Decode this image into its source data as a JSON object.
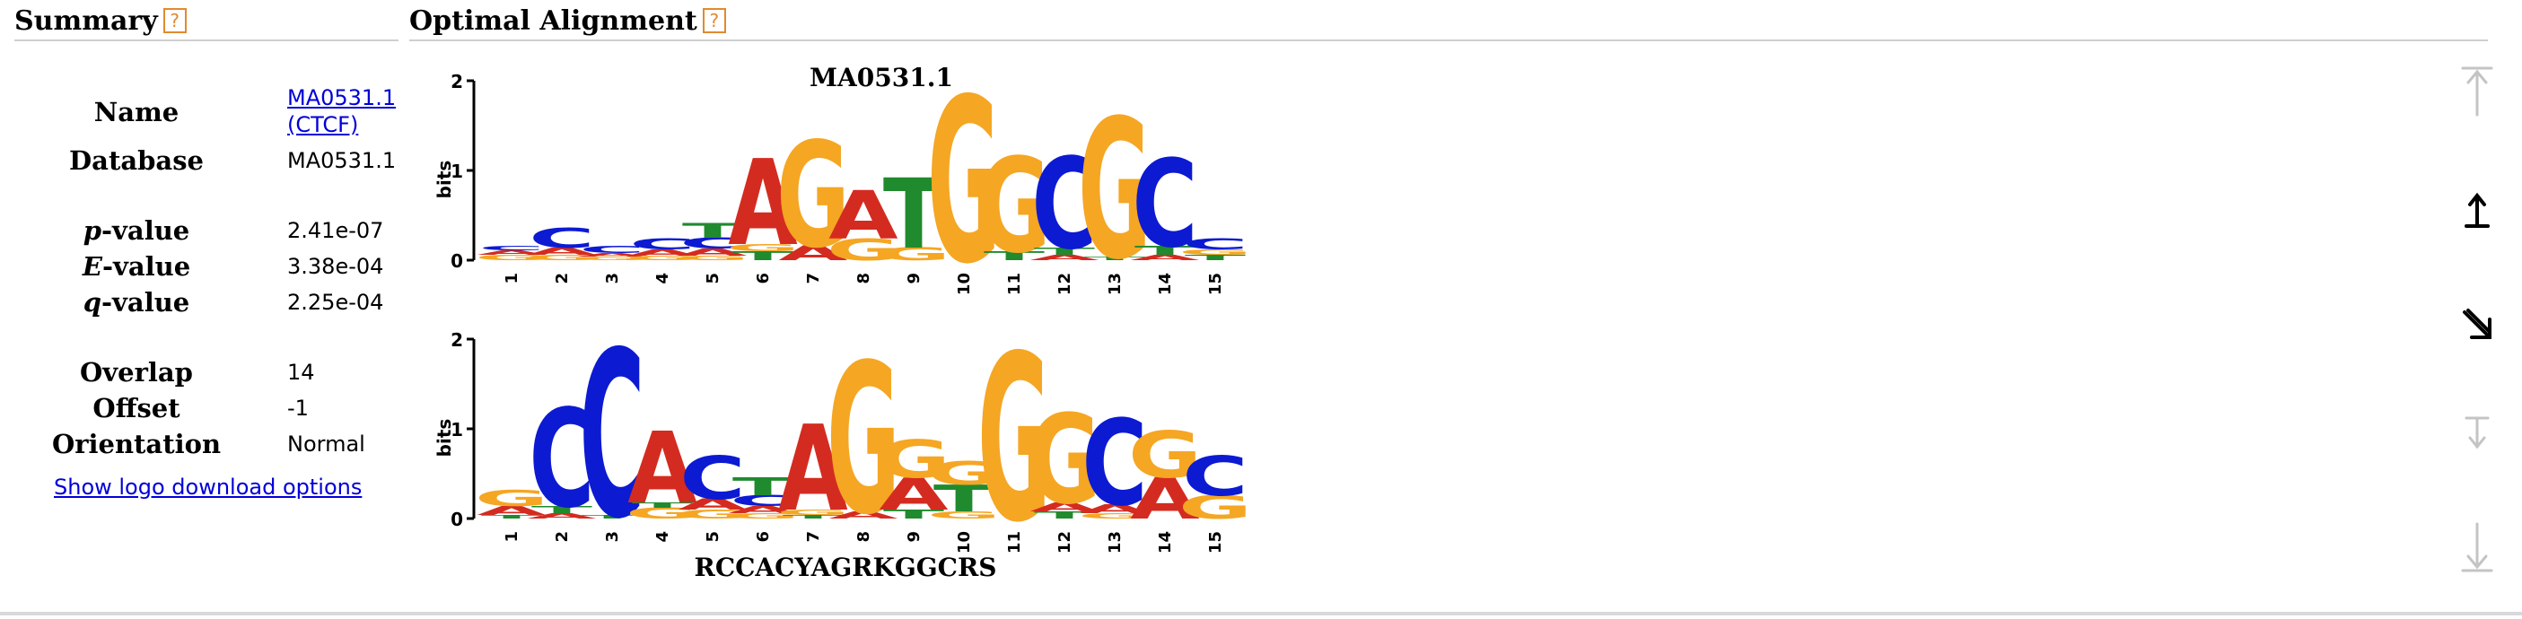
{
  "summary": {
    "title": "Summary",
    "help_glyph": "?",
    "rows": [
      {
        "label": "Name",
        "value_line1": "MA0531.1",
        "value_line2": "(CTCF)"
      },
      {
        "label": "Database",
        "value": "MA0531.1"
      },
      {
        "label_italic": "p",
        "label_rest": "-value",
        "value": "2.41e-07"
      },
      {
        "label_italic": "E",
        "label_rest": "-value",
        "value": "3.38e-04"
      },
      {
        "label_italic": "q",
        "label_rest": "-value",
        "value": "2.25e-04"
      },
      {
        "label": "Overlap",
        "value": "14"
      },
      {
        "label": "Offset",
        "value": "-1"
      },
      {
        "label": "Orientation",
        "value": "Normal"
      }
    ],
    "download_link": "Show logo download options"
  },
  "alignment": {
    "title": "Optimal Alignment",
    "help_glyph": "?",
    "top_logo_title": "MA0531.1",
    "bottom_logo_title": "RCCACYAGRKGGCRS",
    "y_axis_label": "bits",
    "y_ticks": [
      "0",
      "1",
      "2"
    ],
    "positions": [
      "1",
      "2",
      "3",
      "4",
      "5",
      "6",
      "7",
      "8",
      "9",
      "10",
      "11",
      "12",
      "13",
      "14",
      "15"
    ],
    "top_letters": [
      "",
      "C",
      "",
      "",
      "",
      "A",
      "G",
      "A",
      "T",
      "G",
      "G",
      "C",
      "G",
      "C",
      ""
    ],
    "bottom_letters": [
      "",
      "C",
      "C",
      "A",
      "C",
      "A",
      "G",
      "G",
      "",
      "G",
      "G",
      "C",
      "G",
      "C",
      ""
    ]
  },
  "nav": {
    "move_top_icon": "arrow-to-top-icon",
    "move_up_icon": "arrow-up-icon",
    "move_down_right_icon": "arrow-down-right-icon",
    "move_down_icon": "arrow-down-icon",
    "move_bottom_icon": "arrow-to-bottom-icon"
  },
  "colors": {
    "A": "#d42b20",
    "C": "#0c1ad2",
    "G": "#f5a623",
    "T": "#208a2e",
    "help": "#e08a2e",
    "link": "#0000d8"
  }
}
